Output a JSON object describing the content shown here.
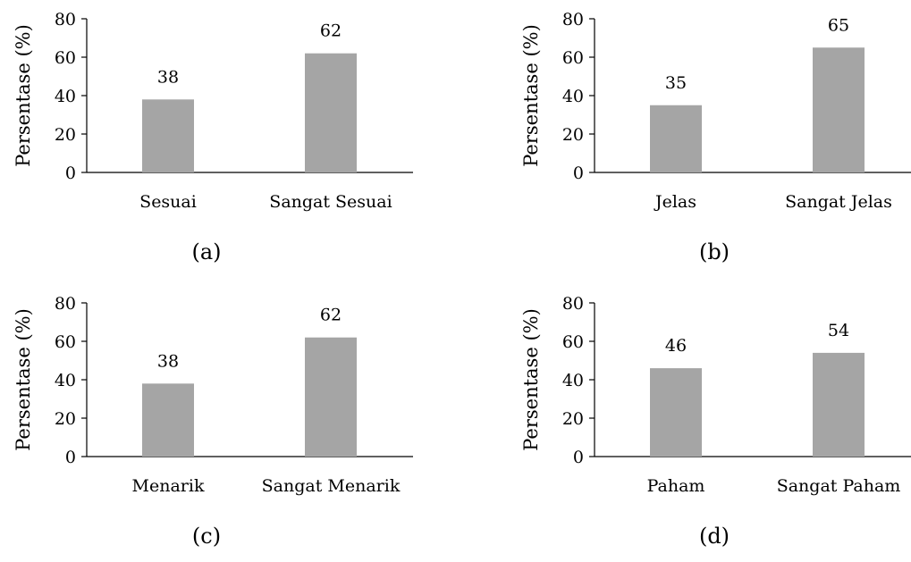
{
  "colors": {
    "bar": "#a5a5a5",
    "axis": "#000000"
  },
  "chart_data": [
    {
      "panel": "(a)",
      "type": "bar",
      "categories": [
        "Sesuai",
        "Sangat Sesuai"
      ],
      "values": [
        38,
        62
      ],
      "data_labels": [
        "38",
        "62"
      ],
      "ylabel": "Persentase (%)",
      "ylim": [
        0,
        80
      ],
      "yticks": [
        "0",
        "20",
        "40",
        "60",
        "80"
      ],
      "grid": false
    },
    {
      "panel": "(b)",
      "type": "bar",
      "categories": [
        "Jelas",
        "Sangat Jelas"
      ],
      "values": [
        35,
        65
      ],
      "data_labels": [
        "35",
        "65"
      ],
      "ylabel": "Persentase (%)",
      "ylim": [
        0,
        80
      ],
      "yticks": [
        "0",
        "20",
        "40",
        "60",
        "80"
      ],
      "grid": false
    },
    {
      "panel": "(c)",
      "type": "bar",
      "categories": [
        "Menarik",
        "Sangat Menarik"
      ],
      "values": [
        38,
        62
      ],
      "data_labels": [
        "38",
        "62"
      ],
      "ylabel": "Persentase (%)",
      "ylim": [
        0,
        80
      ],
      "yticks": [
        "0",
        "20",
        "40",
        "60",
        "80"
      ],
      "grid": false
    },
    {
      "panel": "(d)",
      "type": "bar",
      "categories": [
        "Paham",
        "Sangat Paham"
      ],
      "values": [
        46,
        54
      ],
      "data_labels": [
        "46",
        "54"
      ],
      "ylabel": "Persentase (%)",
      "ylim": [
        0,
        80
      ],
      "yticks": [
        "0",
        "20",
        "40",
        "60",
        "80"
      ],
      "grid": false
    }
  ]
}
